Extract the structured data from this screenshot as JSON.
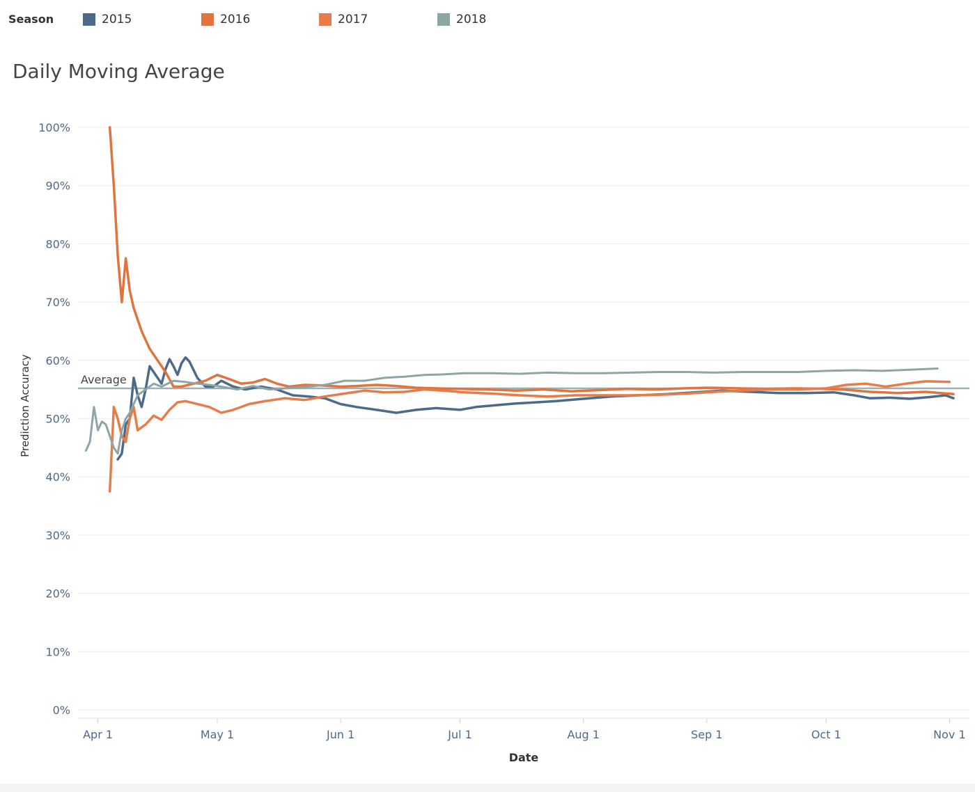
{
  "legend": {
    "title": "Season",
    "items": [
      {
        "label": "2015",
        "color": "#4e6a8a"
      },
      {
        "label": "2016",
        "color": "#e0743e"
      },
      {
        "label": "2017",
        "color": "#e67c49"
      },
      {
        "label": "2018",
        "color": "#8ea5a5"
      }
    ]
  },
  "chart_data": {
    "type": "line",
    "title": "Daily Moving Average",
    "xlabel": "Date",
    "ylabel": "Prediction Accuracy",
    "x_ticks": [
      "Apr 1",
      "May 1",
      "Jun 1",
      "Jul 1",
      "Aug 1",
      "Sep 1",
      "Oct 1",
      "Nov 1"
    ],
    "y_ticks": [
      "0%",
      "10%",
      "20%",
      "30%",
      "40%",
      "50%",
      "60%",
      "70%",
      "80%",
      "90%",
      "100%"
    ],
    "ylim": [
      0,
      100
    ],
    "xlim": [
      "2015-03-27",
      "2015-11-06"
    ],
    "grid": true,
    "reference_line": {
      "label": "Average",
      "value": 55.2,
      "color": "#9fb0b0"
    },
    "series": [
      {
        "name": "2015",
        "color": "#4e6a8a",
        "width": 3.5,
        "points": [
          [
            "2015-04-06",
            43
          ],
          [
            "2015-04-07",
            44
          ],
          [
            "2015-04-08",
            49
          ],
          [
            "2015-04-09",
            50
          ],
          [
            "2015-04-10",
            57
          ],
          [
            "2015-04-11",
            54
          ],
          [
            "2015-04-12",
            52
          ],
          [
            "2015-04-13",
            55
          ],
          [
            "2015-04-14",
            59
          ],
          [
            "2015-04-15",
            58
          ],
          [
            "2015-04-16",
            57
          ],
          [
            "2015-04-17",
            56
          ],
          [
            "2015-04-18",
            58.5
          ],
          [
            "2015-04-19",
            60.2
          ],
          [
            "2015-04-20",
            59
          ],
          [
            "2015-04-21",
            57.5
          ],
          [
            "2015-04-22",
            59.5
          ],
          [
            "2015-04-23",
            60.5
          ],
          [
            "2015-04-24",
            59.8
          ],
          [
            "2015-04-26",
            57
          ],
          [
            "2015-04-28",
            55.5
          ],
          [
            "2015-04-30",
            55.5
          ],
          [
            "2015-05-02",
            56.5
          ],
          [
            "2015-05-05",
            55.5
          ],
          [
            "2015-05-08",
            55
          ],
          [
            "2015-05-12",
            55.5
          ],
          [
            "2015-05-16",
            55
          ],
          [
            "2015-05-20",
            54
          ],
          [
            "2015-05-24",
            53.8
          ],
          [
            "2015-05-28",
            53.5
          ],
          [
            "2015-06-01",
            52.5
          ],
          [
            "2015-06-05",
            52
          ],
          [
            "2015-06-10",
            51.5
          ],
          [
            "2015-06-15",
            51
          ],
          [
            "2015-06-20",
            51.5
          ],
          [
            "2015-06-25",
            51.8
          ],
          [
            "2015-07-01",
            51.5
          ],
          [
            "2015-07-05",
            52
          ],
          [
            "2015-07-10",
            52.3
          ],
          [
            "2015-07-15",
            52.6
          ],
          [
            "2015-07-20",
            52.8
          ],
          [
            "2015-07-25",
            53
          ],
          [
            "2015-08-01",
            53.4
          ],
          [
            "2015-08-08",
            53.8
          ],
          [
            "2015-08-15",
            54
          ],
          [
            "2015-08-22",
            54.2
          ],
          [
            "2015-08-29",
            54.5
          ],
          [
            "2015-09-05",
            54.8
          ],
          [
            "2015-09-12",
            54.6
          ],
          [
            "2015-09-19",
            54.4
          ],
          [
            "2015-09-26",
            54.4
          ],
          [
            "2015-10-03",
            54.5
          ],
          [
            "2015-10-08",
            54
          ],
          [
            "2015-10-12",
            53.5
          ],
          [
            "2015-10-17",
            53.6
          ],
          [
            "2015-10-22",
            53.4
          ],
          [
            "2015-10-27",
            53.7
          ],
          [
            "2015-10-31",
            54
          ],
          [
            "2015-11-02",
            53.5
          ]
        ]
      },
      {
        "name": "2016",
        "color": "#e0743e",
        "width": 3.5,
        "points": [
          [
            "2015-04-04",
            100
          ],
          [
            "2015-04-05",
            90
          ],
          [
            "2015-04-06",
            78
          ],
          [
            "2015-04-07",
            70
          ],
          [
            "2015-04-08",
            77.5
          ],
          [
            "2015-04-09",
            72
          ],
          [
            "2015-04-10",
            69
          ],
          [
            "2015-04-12",
            65
          ],
          [
            "2015-04-14",
            62
          ],
          [
            "2015-04-16",
            60
          ],
          [
            "2015-04-18",
            58
          ],
          [
            "2015-04-20",
            55.5
          ],
          [
            "2015-04-22",
            55.5
          ],
          [
            "2015-04-25",
            56
          ],
          [
            "2015-04-28",
            56.5
          ],
          [
            "2015-05-01",
            57.5
          ],
          [
            "2015-05-04",
            56.8
          ],
          [
            "2015-05-07",
            56
          ],
          [
            "2015-05-10",
            56.2
          ],
          [
            "2015-05-13",
            56.8
          ],
          [
            "2015-05-16",
            56
          ],
          [
            "2015-05-19",
            55.5
          ],
          [
            "2015-05-23",
            55.8
          ],
          [
            "2015-05-27",
            55.7
          ],
          [
            "2015-06-01",
            55.5
          ],
          [
            "2015-06-05",
            55.6
          ],
          [
            "2015-06-10",
            55.8
          ],
          [
            "2015-06-15",
            55.6
          ],
          [
            "2015-06-20",
            55.3
          ],
          [
            "2015-06-25",
            55.2
          ],
          [
            "2015-07-01",
            55.1
          ],
          [
            "2015-07-08",
            55
          ],
          [
            "2015-07-15",
            54.8
          ],
          [
            "2015-07-22",
            55
          ],
          [
            "2015-07-29",
            54.7
          ],
          [
            "2015-08-05",
            54.9
          ],
          [
            "2015-08-12",
            55.1
          ],
          [
            "2015-08-19",
            55
          ],
          [
            "2015-08-26",
            55.2
          ],
          [
            "2015-09-02",
            55.3
          ],
          [
            "2015-09-09",
            55.2
          ],
          [
            "2015-09-16",
            55.1
          ],
          [
            "2015-09-23",
            55.2
          ],
          [
            "2015-09-30",
            55.1
          ],
          [
            "2015-10-05",
            55
          ],
          [
            "2015-10-12",
            54.6
          ],
          [
            "2015-10-19",
            54.4
          ],
          [
            "2015-10-26",
            54.6
          ],
          [
            "2015-11-02",
            54.2
          ]
        ]
      },
      {
        "name": "2017",
        "color": "#e67c49",
        "width": 3.5,
        "points": [
          [
            "2015-04-04",
            37.5
          ],
          [
            "2015-04-05",
            52
          ],
          [
            "2015-04-06",
            50
          ],
          [
            "2015-04-07",
            47
          ],
          [
            "2015-04-08",
            46
          ],
          [
            "2015-04-09",
            50
          ],
          [
            "2015-04-10",
            52
          ],
          [
            "2015-04-11",
            48
          ],
          [
            "2015-04-13",
            49
          ],
          [
            "2015-04-15",
            50.5
          ],
          [
            "2015-04-17",
            49.8
          ],
          [
            "2015-04-19",
            51.5
          ],
          [
            "2015-04-21",
            52.8
          ],
          [
            "2015-04-23",
            53
          ],
          [
            "2015-04-26",
            52.5
          ],
          [
            "2015-04-29",
            52
          ],
          [
            "2015-05-02",
            51
          ],
          [
            "2015-05-05",
            51.5
          ],
          [
            "2015-05-09",
            52.5
          ],
          [
            "2015-05-13",
            53
          ],
          [
            "2015-05-18",
            53.5
          ],
          [
            "2015-05-23",
            53.2
          ],
          [
            "2015-05-28",
            53.8
          ],
          [
            "2015-06-02",
            54.3
          ],
          [
            "2015-06-07",
            54.8
          ],
          [
            "2015-06-12",
            54.5
          ],
          [
            "2015-06-17",
            54.6
          ],
          [
            "2015-06-22",
            55
          ],
          [
            "2015-06-27",
            54.8
          ],
          [
            "2015-07-02",
            54.5
          ],
          [
            "2015-07-09",
            54.3
          ],
          [
            "2015-07-16",
            54
          ],
          [
            "2015-07-23",
            53.8
          ],
          [
            "2015-07-30",
            54
          ],
          [
            "2015-08-06",
            54
          ],
          [
            "2015-08-13",
            54
          ],
          [
            "2015-08-20",
            54.1
          ],
          [
            "2015-08-27",
            54.3
          ],
          [
            "2015-09-03",
            54.6
          ],
          [
            "2015-09-10",
            54.8
          ],
          [
            "2015-09-17",
            55
          ],
          [
            "2015-09-24",
            55
          ],
          [
            "2015-10-01",
            55.2
          ],
          [
            "2015-10-06",
            55.8
          ],
          [
            "2015-10-11",
            56
          ],
          [
            "2015-10-16",
            55.5
          ],
          [
            "2015-10-21",
            56
          ],
          [
            "2015-10-26",
            56.4
          ],
          [
            "2015-11-01",
            56.3
          ]
        ]
      },
      {
        "name": "2018",
        "color": "#8ea5a5",
        "width": 3,
        "points": [
          [
            "2015-03-29",
            44.5
          ],
          [
            "2015-03-30",
            46
          ],
          [
            "2015-03-31",
            52
          ],
          [
            "2015-04-01",
            48
          ],
          [
            "2015-04-02",
            49.5
          ],
          [
            "2015-04-03",
            49
          ],
          [
            "2015-04-04",
            47
          ],
          [
            "2015-04-05",
            45
          ],
          [
            "2015-04-06",
            44
          ],
          [
            "2015-04-07",
            48
          ],
          [
            "2015-04-08",
            50
          ],
          [
            "2015-04-09",
            51
          ],
          [
            "2015-04-11",
            54
          ],
          [
            "2015-04-13",
            55
          ],
          [
            "2015-04-15",
            56
          ],
          [
            "2015-04-17",
            55.5
          ],
          [
            "2015-04-20",
            56.5
          ],
          [
            "2015-04-23",
            56.3
          ],
          [
            "2015-04-26",
            56
          ],
          [
            "2015-04-29",
            55.8
          ],
          [
            "2015-05-02",
            55.5
          ],
          [
            "2015-05-06",
            55
          ],
          [
            "2015-05-10",
            55.6
          ],
          [
            "2015-05-14",
            55
          ],
          [
            "2015-05-18",
            55.2
          ],
          [
            "2015-05-23",
            55.4
          ],
          [
            "2015-05-28",
            55.8
          ],
          [
            "2015-06-02",
            56.5
          ],
          [
            "2015-06-07",
            56.5
          ],
          [
            "2015-06-12",
            57
          ],
          [
            "2015-06-17",
            57.2
          ],
          [
            "2015-06-22",
            57.5
          ],
          [
            "2015-06-27",
            57.6
          ],
          [
            "2015-07-02",
            57.8
          ],
          [
            "2015-07-09",
            57.8
          ],
          [
            "2015-07-16",
            57.7
          ],
          [
            "2015-07-23",
            57.9
          ],
          [
            "2015-07-30",
            57.8
          ],
          [
            "2015-08-06",
            57.8
          ],
          [
            "2015-08-13",
            57.9
          ],
          [
            "2015-08-20",
            58
          ],
          [
            "2015-08-27",
            58
          ],
          [
            "2015-09-03",
            57.9
          ],
          [
            "2015-09-10",
            58
          ],
          [
            "2015-09-17",
            58
          ],
          [
            "2015-09-24",
            58
          ],
          [
            "2015-10-01",
            58.2
          ],
          [
            "2015-10-08",
            58.3
          ],
          [
            "2015-10-15",
            58.2
          ],
          [
            "2015-10-22",
            58.4
          ],
          [
            "2015-10-29",
            58.6
          ]
        ]
      }
    ]
  }
}
